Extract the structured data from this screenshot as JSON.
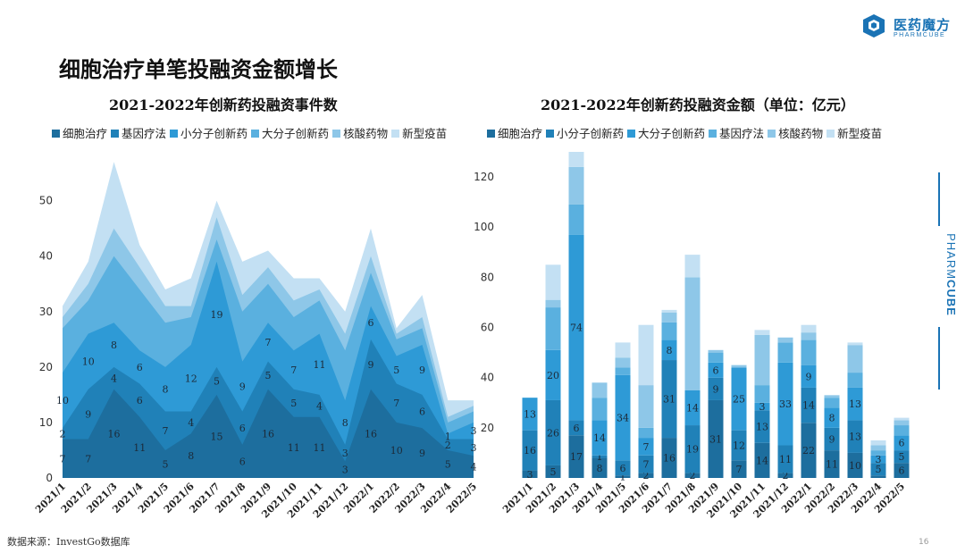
{
  "brand": {
    "name": "医药魔方",
    "sub": "PHARMCUBE",
    "side_text_1": "PHARM",
    "side_text_2": "CUBE",
    "color": "#1a73b5"
  },
  "page": {
    "title": "细胞治疗单笔投融资金额增长",
    "source": "数据来源：InvestGo数据库",
    "page_number": "16"
  },
  "palette": [
    "#1d6e9e",
    "#2081b8",
    "#2e9ad6",
    "#5ab0df",
    "#8ec7e8",
    "#c3e0f3"
  ],
  "chart_data": [
    {
      "type": "area",
      "stacked": true,
      "title": "2021-2022年创新药投融资事件数",
      "categories": [
        "2021/1",
        "2021/2",
        "2021/3",
        "2021/4",
        "2021/5",
        "2021/6",
        "2021/7",
        "2021/8",
        "2021/9",
        "2021/10",
        "2021/11",
        "2021/12",
        "2022/1",
        "2022/2",
        "2022/3",
        "2022/4",
        "2022/5"
      ],
      "ylim": [
        0,
        58
      ],
      "yticks": [
        0,
        10,
        20,
        30,
        40,
        50
      ],
      "grid": false,
      "legend_position": "top",
      "series": [
        {
          "name": "细胞治疗",
          "values": [
            7,
            7,
            16,
            11,
            5,
            8,
            15,
            6,
            16,
            11,
            11,
            3,
            16,
            10,
            9,
            5,
            4
          ],
          "labels": [
            "7",
            "7",
            "16",
            "11",
            "5",
            "8",
            "15",
            "6",
            "16",
            "11",
            "11",
            "3",
            "16",
            "10",
            "9",
            "5",
            "4"
          ]
        },
        {
          "name": "基因疗法",
          "values": [
            2,
            9,
            4,
            6,
            7,
            4,
            5,
            6,
            5,
            5,
            4,
            3,
            9,
            7,
            6,
            2,
            3
          ],
          "labels": [
            "2",
            "9",
            "4",
            "6",
            "7",
            "4",
            "5",
            "6",
            "5",
            "5",
            "4",
            "3",
            "9",
            "7",
            "6",
            "2",
            "3"
          ]
        },
        {
          "name": "小分子创新药",
          "values": [
            10,
            10,
            8,
            6,
            8,
            12,
            19,
            9,
            7,
            7,
            11,
            8,
            6,
            5,
            9,
            1,
            3
          ],
          "labels": [
            "10",
            "10",
            "8",
            "6",
            "8",
            "12",
            "19",
            "9",
            "7",
            "7",
            "11",
            "8",
            "6",
            "5",
            "9",
            "1",
            "3"
          ]
        },
        {
          "name": "大分子创新药",
          "values": [
            8,
            6,
            12,
            11,
            8,
            5,
            4,
            9,
            7,
            6,
            6,
            9,
            6,
            3,
            3,
            2,
            2
          ],
          "labels": [
            "",
            "",
            "",
            "",
            "",
            "",
            "",
            "",
            "",
            "",
            "",
            "",
            "",
            "",
            "",
            "",
            ""
          ]
        },
        {
          "name": "核酸药物",
          "values": [
            2,
            3,
            5,
            4,
            3,
            2,
            4,
            3,
            3,
            3,
            2,
            3,
            3,
            1,
            2,
            1,
            1
          ],
          "labels": [
            "",
            "",
            "",
            "",
            "",
            "",
            "",
            "",
            "",
            "",
            "",
            "",
            "",
            "",
            "",
            "",
            ""
          ]
        },
        {
          "name": "新型疫苗",
          "values": [
            2,
            4,
            12,
            4,
            3,
            5,
            3,
            6,
            3,
            4,
            2,
            4,
            5,
            1,
            4,
            3,
            1
          ],
          "labels": [
            "",
            "",
            "",
            "",
            "",
            "",
            "",
            "",
            "",
            "",
            "",
            "",
            "",
            "",
            "",
            "",
            ""
          ]
        }
      ]
    },
    {
      "type": "bar",
      "stacked": true,
      "title": "2021-2022年创新药投融资金额（单位：亿元）",
      "categories": [
        "2021/1",
        "2021/2",
        "2021/3",
        "2021/4",
        "2021/5",
        "2021/6",
        "2021/7",
        "2021/8",
        "2021/9",
        "2021/10",
        "2021/11",
        "2021/12",
        "2022/1",
        "2022/2",
        "2022/3",
        "2022/4",
        "2022/5"
      ],
      "ylim": [
        0,
        130
      ],
      "yticks": [
        20,
        40,
        60,
        80,
        100,
        120
      ],
      "grid": false,
      "legend_position": "top",
      "series": [
        {
          "name": "细胞治疗",
          "values": [
            3,
            5,
            17,
            8,
            1,
            2,
            16,
            2,
            31,
            7,
            14,
            2,
            22,
            11,
            10,
            1,
            6
          ],
          "labels": [
            "3",
            "5",
            "17",
            "8",
            "1",
            "2",
            "16",
            "2",
            "31",
            "7",
            "14",
            "2",
            "22",
            "11",
            "10",
            "",
            "6"
          ]
        },
        {
          "name": "小分子创新药",
          "values": [
            16,
            26,
            6,
            1,
            6,
            7,
            31,
            19,
            9,
            12,
            13,
            11,
            14,
            9,
            13,
            5,
            5
          ],
          "labels": [
            "16",
            "26",
            "6",
            "1",
            "6",
            "7",
            "31",
            "19",
            "9",
            "12",
            "13",
            "11",
            "14",
            "9",
            "13",
            "5",
            "5"
          ]
        },
        {
          "name": "大分子创新药",
          "values": [
            13,
            20,
            74,
            14,
            34,
            7,
            8,
            14,
            6,
            25,
            3,
            33,
            9,
            8,
            13,
            3,
            6
          ],
          "labels": [
            "13",
            "20",
            "74",
            "14",
            "34",
            "7",
            "8",
            "14",
            "6",
            "25",
            "3",
            "33",
            "9",
            "8",
            "13",
            "3",
            "6"
          ]
        },
        {
          "name": "基因疗法",
          "values": [
            0,
            17,
            12,
            9,
            3,
            4,
            7,
            0,
            4,
            0,
            7,
            8,
            10,
            4,
            6,
            2,
            4
          ],
          "labels": [
            "",
            "",
            "",
            "",
            "",
            "",
            "",
            "",
            "",
            "",
            "",
            "",
            "",
            "",
            "",
            "",
            ""
          ]
        },
        {
          "name": "核酸药物",
          "values": [
            0,
            3,
            15,
            6,
            4,
            17,
            4,
            45,
            1,
            1,
            20,
            2,
            3,
            1,
            11,
            2,
            2
          ],
          "labels": [
            "",
            "",
            "",
            "",
            "",
            "",
            "",
            "",
            "",
            "",
            "",
            "",
            "",
            "",
            "",
            "",
            ""
          ]
        },
        {
          "name": "新型疫苗",
          "values": [
            0,
            14,
            6,
            0,
            6,
            24,
            1,
            9,
            0,
            0,
            2,
            0,
            3,
            0,
            1,
            2,
            1
          ],
          "labels": [
            "",
            "",
            "",
            "",
            "",
            "",
            "",
            "",
            "",
            "",
            "",
            "",
            "",
            "",
            "",
            "",
            ""
          ]
        }
      ]
    }
  ]
}
